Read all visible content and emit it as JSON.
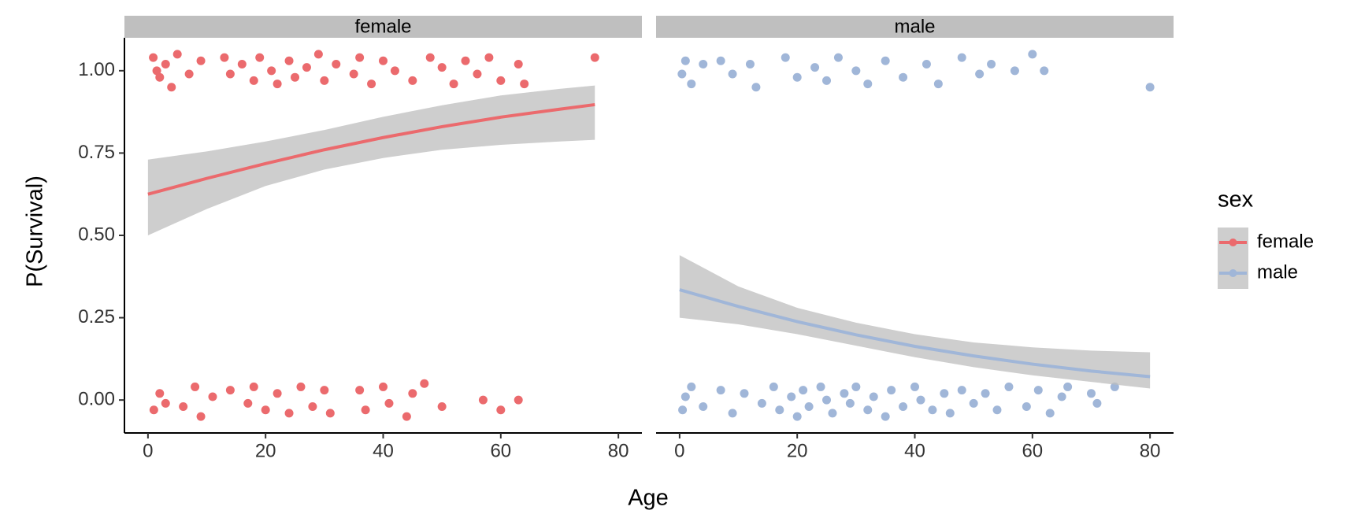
{
  "chart_data": {
    "type": "scatter",
    "xlabel": "Age",
    "ylabel": "P(Survival)",
    "legend_title": "sex",
    "legend_position": "right",
    "xlim": [
      -4,
      84
    ],
    "xticks": [
      0,
      20,
      40,
      60,
      80
    ],
    "ylim": [
      -0.1,
      1.1
    ],
    "yticks": [
      {
        "value": 0,
        "label": "0.00"
      },
      {
        "value": 0.25,
        "label": "0.25"
      },
      {
        "value": 0.5,
        "label": "0.50"
      },
      {
        "value": 0.75,
        "label": "0.75"
      },
      {
        "value": 1,
        "label": "1.00"
      }
    ],
    "ribbon_color": "#bdbdbd",
    "facets": [
      {
        "name": "female",
        "color": "#eb6a6d",
        "points": {
          "x": [
            0.9,
            1.5,
            2,
            3,
            4,
            5,
            7,
            9,
            13,
            14,
            16,
            18,
            19,
            21,
            22,
            24,
            25,
            27,
            29,
            30,
            32,
            35,
            36,
            38,
            40,
            42,
            45,
            48,
            50,
            52,
            54,
            56,
            58,
            60,
            63,
            64,
            76,
            1,
            2,
            3,
            6,
            8,
            9,
            11,
            14,
            17,
            18,
            20,
            22,
            24,
            26,
            28,
            30,
            31,
            36,
            37,
            40,
            41,
            44,
            45,
            47,
            50,
            57,
            60,
            63
          ],
          "y": [
            1.04,
            1.0,
            0.98,
            1.02,
            0.95,
            1.05,
            0.99,
            1.03,
            1.04,
            0.99,
            1.02,
            0.97,
            1.04,
            1.0,
            0.96,
            1.03,
            0.98,
            1.01,
            1.05,
            0.97,
            1.02,
            0.99,
            1.04,
            0.96,
            1.03,
            1.0,
            0.97,
            1.04,
            1.01,
            0.96,
            1.03,
            0.99,
            1.04,
            0.97,
            1.02,
            0.96,
            1.04,
            -0.03,
            0.02,
            -0.01,
            -0.02,
            0.04,
            -0.05,
            0.01,
            0.03,
            -0.01,
            0.04,
            -0.03,
            0.02,
            -0.04,
            0.04,
            -0.02,
            0.03,
            -0.04,
            0.03,
            -0.03,
            0.04,
            -0.01,
            -0.05,
            0.02,
            0.05,
            -0.02,
            0.0,
            -0.03,
            0.0
          ]
        },
        "fit": {
          "x": [
            0,
            10,
            20,
            30,
            40,
            50,
            60,
            70,
            76
          ],
          "y": [
            0.625,
            0.673,
            0.718,
            0.76,
            0.797,
            0.83,
            0.859,
            0.883,
            0.897
          ],
          "lower": [
            0.5,
            0.58,
            0.65,
            0.7,
            0.735,
            0.76,
            0.775,
            0.785,
            0.79
          ],
          "upper": [
            0.73,
            0.755,
            0.785,
            0.82,
            0.86,
            0.895,
            0.925,
            0.945,
            0.955
          ]
        }
      },
      {
        "name": "male",
        "color": "#a0b6d8",
        "points": {
          "x": [
            0.4,
            1,
            2,
            4,
            7,
            9,
            12,
            13,
            18,
            20,
            23,
            25,
            27,
            30,
            32,
            35,
            38,
            42,
            44,
            48,
            51,
            53,
            57,
            60,
            62,
            80,
            0.5,
            1,
            2,
            4,
            7,
            9,
            11,
            14,
            16,
            17,
            19,
            20,
            21,
            22,
            24,
            25,
            26,
            28,
            29,
            30,
            32,
            33,
            35,
            36,
            38,
            40,
            41,
            43,
            45,
            46,
            48,
            50,
            52,
            54,
            56,
            59,
            61,
            63,
            65,
            66,
            70,
            71,
            74
          ],
          "y": [
            0.99,
            1.03,
            0.96,
            1.02,
            1.03,
            0.99,
            1.02,
            0.95,
            1.04,
            0.98,
            1.01,
            0.97,
            1.04,
            1.0,
            0.96,
            1.03,
            0.98,
            1.02,
            0.96,
            1.04,
            0.99,
            1.02,
            1.0,
            1.05,
            1.0,
            0.95,
            -0.03,
            0.01,
            0.04,
            -0.02,
            0.03,
            -0.04,
            0.02,
            -0.01,
            0.04,
            -0.03,
            0.01,
            -0.05,
            0.03,
            -0.02,
            0.04,
            0.0,
            -0.04,
            0.02,
            -0.01,
            0.04,
            -0.03,
            0.01,
            -0.05,
            0.03,
            -0.02,
            0.04,
            0.0,
            -0.03,
            0.02,
            -0.04,
            0.03,
            -0.01,
            0.02,
            -0.03,
            0.04,
            -0.02,
            0.03,
            -0.04,
            0.01,
            0.04,
            0.02,
            -0.01,
            0.04
          ]
        },
        "fit": {
          "x": [
            0,
            10,
            20,
            30,
            40,
            50,
            60,
            70,
            80
          ],
          "y": [
            0.335,
            0.284,
            0.238,
            0.198,
            0.163,
            0.134,
            0.109,
            0.088,
            0.071
          ],
          "lower": [
            0.25,
            0.23,
            0.2,
            0.165,
            0.13,
            0.1,
            0.075,
            0.055,
            0.035
          ],
          "upper": [
            0.44,
            0.345,
            0.28,
            0.235,
            0.2,
            0.175,
            0.16,
            0.15,
            0.145
          ]
        }
      }
    ]
  }
}
